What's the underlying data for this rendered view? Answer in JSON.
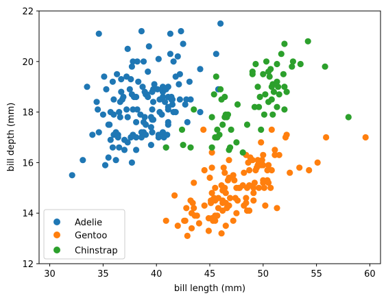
{
  "chart_data": {
    "type": "scatter",
    "xlabel": "bill length (mm)",
    "ylabel": "bill depth (mm)",
    "xlim": [
      29,
      61
    ],
    "ylim": [
      12,
      22
    ],
    "xticks": [
      30,
      35,
      40,
      45,
      50,
      55,
      60
    ],
    "yticks": [
      12,
      14,
      16,
      18,
      20,
      22
    ],
    "grid": false,
    "legend": "lower-left",
    "series": [
      {
        "name": "Adelie",
        "color": "#1f77b4",
        "points": [
          [
            32.1,
            15.5
          ],
          [
            33.1,
            16.1
          ],
          [
            33.5,
            19.0
          ],
          [
            34.0,
            17.1
          ],
          [
            34.4,
            18.4
          ],
          [
            34.5,
            18.1
          ],
          [
            34.6,
            21.1
          ],
          [
            34.6,
            17.2
          ],
          [
            35.0,
            17.9
          ],
          [
            35.1,
            19.4
          ],
          [
            35.2,
            15.9
          ],
          [
            35.3,
            18.9
          ],
          [
            35.5,
            16.2
          ],
          [
            35.5,
            17.5
          ],
          [
            35.6,
            17.5
          ],
          [
            35.7,
            16.9
          ],
          [
            35.7,
            18.0
          ],
          [
            35.9,
            19.2
          ],
          [
            35.9,
            16.6
          ],
          [
            36.0,
            18.5
          ],
          [
            36.0,
            17.1
          ],
          [
            36.0,
            17.9
          ],
          [
            36.2,
            16.1
          ],
          [
            36.2,
            17.2
          ],
          [
            36.3,
            19.5
          ],
          [
            36.4,
            17.0
          ],
          [
            36.4,
            17.1
          ],
          [
            36.5,
            16.6
          ],
          [
            36.5,
            18.0
          ],
          [
            36.6,
            17.8
          ],
          [
            36.6,
            18.4
          ],
          [
            36.7,
            18.8
          ],
          [
            36.7,
            19.3
          ],
          [
            36.8,
            18.5
          ],
          [
            36.9,
            18.6
          ],
          [
            37.0,
            16.9
          ],
          [
            37.0,
            16.5
          ],
          [
            37.2,
            18.1
          ],
          [
            37.2,
            19.4
          ],
          [
            37.3,
            20.5
          ],
          [
            37.3,
            16.8
          ],
          [
            37.3,
            17.8
          ],
          [
            37.5,
            18.9
          ],
          [
            37.6,
            19.3
          ],
          [
            37.6,
            17.0
          ],
          [
            37.7,
            18.7
          ],
          [
            37.7,
            19.8
          ],
          [
            37.7,
            16.0
          ],
          [
            37.8,
            17.1
          ],
          [
            37.8,
            18.1
          ],
          [
            37.8,
            20.0
          ],
          [
            37.9,
            18.6
          ],
          [
            38.1,
            17.0
          ],
          [
            38.1,
            16.5
          ],
          [
            38.1,
            18.6
          ],
          [
            38.1,
            17.6
          ],
          [
            38.2,
            18.1
          ],
          [
            38.2,
            20.0
          ],
          [
            38.3,
            19.2
          ],
          [
            38.5,
            17.9
          ],
          [
            38.6,
            21.2
          ],
          [
            38.6,
            17.2
          ],
          [
            38.6,
            17.0
          ],
          [
            38.7,
            19.0
          ],
          [
            38.8,
            17.2
          ],
          [
            38.8,
            20.0
          ],
          [
            38.8,
            17.6
          ],
          [
            38.9,
            18.8
          ],
          [
            38.9,
            17.8
          ],
          [
            39.0,
            17.1
          ],
          [
            39.0,
            17.5
          ],
          [
            39.0,
            18.7
          ],
          [
            39.1,
            18.7
          ],
          [
            39.2,
            19.6
          ],
          [
            39.2,
            18.6
          ],
          [
            39.3,
            20.6
          ],
          [
            39.5,
            17.4
          ],
          [
            39.5,
            16.7
          ],
          [
            39.5,
            17.8
          ],
          [
            39.6,
            17.7
          ],
          [
            39.6,
            18.8
          ],
          [
            39.6,
            17.2
          ],
          [
            39.6,
            18.1
          ],
          [
            39.7,
            17.7
          ],
          [
            39.7,
            18.4
          ],
          [
            39.7,
            18.9
          ],
          [
            39.8,
            19.1
          ],
          [
            40.1,
            18.9
          ],
          [
            40.2,
            17.0
          ],
          [
            40.2,
            20.1
          ],
          [
            40.2,
            17.1
          ],
          [
            40.3,
            18.0
          ],
          [
            40.3,
            18.5
          ],
          [
            40.5,
            17.9
          ],
          [
            40.5,
            18.9
          ],
          [
            40.6,
            18.6
          ],
          [
            40.6,
            18.8
          ],
          [
            40.6,
            19.0
          ],
          [
            40.6,
            17.2
          ],
          [
            40.7,
            17.0
          ],
          [
            40.8,
            18.4
          ],
          [
            40.8,
            18.9
          ],
          [
            40.9,
            18.9
          ],
          [
            40.9,
            16.6
          ],
          [
            41.0,
            17.1
          ],
          [
            41.1,
            17.6
          ],
          [
            41.1,
            19.0
          ],
          [
            41.1,
            18.6
          ],
          [
            41.1,
            17.5
          ],
          [
            41.1,
            18.2
          ],
          [
            41.1,
            18.1
          ],
          [
            41.3,
            20.3
          ],
          [
            41.3,
            21.1
          ],
          [
            41.4,
            18.6
          ],
          [
            41.4,
            18.5
          ],
          [
            41.5,
            18.3
          ],
          [
            41.5,
            18.5
          ],
          [
            41.6,
            18.0
          ],
          [
            41.6,
            20.0
          ],
          [
            41.8,
            19.4
          ],
          [
            41.8,
            18.0
          ],
          [
            42.0,
            20.2
          ],
          [
            42.1,
            19.1
          ],
          [
            42.2,
            18.5
          ],
          [
            42.2,
            19.5
          ],
          [
            42.3,
            21.2
          ],
          [
            42.5,
            20.7
          ],
          [
            42.7,
            18.3
          ],
          [
            42.8,
            18.5
          ],
          [
            42.9,
            17.6
          ],
          [
            43.1,
            19.2
          ],
          [
            43.2,
            18.5
          ],
          [
            44.1,
            19.7
          ],
          [
            44.1,
            18.0
          ],
          [
            45.6,
            20.3
          ],
          [
            45.8,
            18.9
          ],
          [
            46.0,
            21.5
          ]
        ]
      },
      {
        "name": "Gentoo",
        "color": "#ff7f0e",
        "points": [
          [
            40.9,
            13.7
          ],
          [
            41.7,
            14.7
          ],
          [
            42.0,
            13.5
          ],
          [
            42.6,
            13.7
          ],
          [
            42.7,
            13.7
          ],
          [
            42.8,
            14.2
          ],
          [
            42.9,
            13.1
          ],
          [
            43.2,
            14.5
          ],
          [
            43.3,
            13.4
          ],
          [
            43.3,
            14.0
          ],
          [
            43.4,
            14.4
          ],
          [
            43.5,
            14.2
          ],
          [
            43.5,
            15.2
          ],
          [
            43.6,
            13.9
          ],
          [
            43.8,
            13.9
          ],
          [
            44.0,
            13.6
          ],
          [
            44.4,
            17.3
          ],
          [
            44.5,
            14.3
          ],
          [
            44.5,
            15.7
          ],
          [
            44.9,
            13.3
          ],
          [
            44.9,
            13.8
          ],
          [
            45.0,
            15.4
          ],
          [
            45.1,
            14.5
          ],
          [
            45.1,
            14.4
          ],
          [
            45.2,
            13.8
          ],
          [
            45.2,
            14.8
          ],
          [
            45.2,
            15.8
          ],
          [
            45.2,
            16.4
          ],
          [
            45.3,
            13.7
          ],
          [
            45.3,
            13.8
          ],
          [
            45.4,
            14.6
          ],
          [
            45.5,
            13.7
          ],
          [
            45.5,
            13.9
          ],
          [
            45.5,
            14.5
          ],
          [
            45.5,
            15.0
          ],
          [
            45.7,
            13.9
          ],
          [
            45.8,
            14.2
          ],
          [
            45.8,
            14.6
          ],
          [
            46.1,
            13.2
          ],
          [
            46.1,
            15.1
          ],
          [
            46.2,
            14.1
          ],
          [
            46.2,
            14.4
          ],
          [
            46.2,
            14.5
          ],
          [
            46.2,
            14.9
          ],
          [
            46.3,
            15.8
          ],
          [
            46.4,
            15.0
          ],
          [
            46.4,
            15.6
          ],
          [
            46.5,
            13.5
          ],
          [
            46.5,
            14.4
          ],
          [
            46.5,
            14.8
          ],
          [
            46.6,
            14.2
          ],
          [
            46.7,
            15.3
          ],
          [
            46.8,
            14.3
          ],
          [
            46.8,
            15.4
          ],
          [
            46.8,
            16.1
          ],
          [
            46.9,
            14.6
          ],
          [
            47.2,
            13.7
          ],
          [
            47.2,
            15.5
          ],
          [
            47.3,
            15.3
          ],
          [
            47.4,
            14.6
          ],
          [
            47.5,
            14.0
          ],
          [
            47.5,
            15.0
          ],
          [
            47.6,
            14.5
          ],
          [
            47.7,
            15.0
          ],
          [
            47.8,
            15.0
          ],
          [
            48.1,
            15.1
          ],
          [
            48.2,
            14.3
          ],
          [
            48.2,
            15.6
          ],
          [
            48.4,
            14.4
          ],
          [
            48.4,
            14.6
          ],
          [
            48.4,
            16.3
          ],
          [
            48.5,
            14.1
          ],
          [
            48.5,
            15.0
          ],
          [
            48.6,
            16.0
          ],
          [
            48.7,
            14.1
          ],
          [
            48.7,
            15.1
          ],
          [
            48.7,
            15.7
          ],
          [
            48.8,
            16.2
          ],
          [
            49.0,
            16.1
          ],
          [
            49.1,
            14.5
          ],
          [
            49.1,
            14.8
          ],
          [
            49.1,
            15.0
          ],
          [
            49.2,
            15.2
          ],
          [
            49.3,
            15.7
          ],
          [
            49.4,
            15.8
          ],
          [
            49.5,
            15.9
          ],
          [
            49.5,
            16.1
          ],
          [
            49.6,
            15.0
          ],
          [
            49.6,
            16.0
          ],
          [
            49.8,
            15.9
          ],
          [
            49.8,
            16.8
          ],
          [
            49.9,
            16.1
          ],
          [
            50.0,
            15.2
          ],
          [
            50.0,
            15.3
          ],
          [
            50.0,
            15.9
          ],
          [
            50.0,
            16.3
          ],
          [
            50.1,
            15.0
          ],
          [
            50.2,
            14.3
          ],
          [
            50.4,
            15.3
          ],
          [
            50.4,
            15.7
          ],
          [
            50.5,
            15.2
          ],
          [
            50.5,
            15.9
          ],
          [
            50.7,
            15.0
          ],
          [
            50.8,
            15.7
          ],
          [
            50.8,
            17.3
          ],
          [
            51.1,
            16.3
          ],
          [
            51.1,
            16.5
          ],
          [
            51.3,
            14.2
          ],
          [
            51.5,
            16.3
          ],
          [
            52.1,
            17.0
          ],
          [
            52.2,
            17.1
          ],
          [
            52.5,
            15.6
          ],
          [
            53.4,
            15.8
          ],
          [
            54.3,
            15.7
          ],
          [
            55.1,
            16.0
          ],
          [
            55.9,
            17.0
          ],
          [
            59.6,
            17.0
          ]
        ]
      },
      {
        "name": "Chinstrap",
        "color": "#2ca02c",
        "points": [
          [
            40.9,
            16.6
          ],
          [
            42.4,
            17.3
          ],
          [
            42.5,
            16.7
          ],
          [
            43.2,
            16.6
          ],
          [
            43.5,
            18.1
          ],
          [
            45.2,
            16.6
          ],
          [
            45.2,
            17.8
          ],
          [
            45.4,
            18.7
          ],
          [
            45.5,
            17.0
          ],
          [
            45.6,
            19.4
          ],
          [
            45.7,
            17.0
          ],
          [
            45.7,
            17.3
          ],
          [
            45.9,
            17.1
          ],
          [
            46.0,
            18.9
          ],
          [
            46.1,
            18.5
          ],
          [
            46.2,
            17.5
          ],
          [
            46.4,
            17.8
          ],
          [
            46.4,
            18.6
          ],
          [
            46.5,
            17.9
          ],
          [
            46.6,
            17.8
          ],
          [
            46.7,
            17.9
          ],
          [
            46.8,
            16.5
          ],
          [
            46.9,
            16.6
          ],
          [
            47.0,
            17.3
          ],
          [
            47.5,
            16.8
          ],
          [
            47.6,
            18.3
          ],
          [
            48.1,
            16.4
          ],
          [
            48.5,
            17.5
          ],
          [
            49.0,
            19.5
          ],
          [
            49.0,
            19.6
          ],
          [
            49.2,
            18.2
          ],
          [
            49.3,
            19.9
          ],
          [
            49.5,
            19.0
          ],
          [
            49.6,
            18.2
          ],
          [
            49.7,
            18.6
          ],
          [
            49.8,
            17.3
          ],
          [
            50.0,
            19.5
          ],
          [
            50.1,
            17.9
          ],
          [
            50.2,
            18.7
          ],
          [
            50.3,
            20.0
          ],
          [
            50.5,
            18.4
          ],
          [
            50.5,
            19.6
          ],
          [
            50.6,
            19.4
          ],
          [
            50.7,
            19.7
          ],
          [
            50.8,
            18.5
          ],
          [
            50.8,
            19.0
          ],
          [
            50.9,
            17.9
          ],
          [
            50.9,
            19.1
          ],
          [
            51.0,
            18.8
          ],
          [
            51.3,
            18.2
          ],
          [
            51.3,
            19.2
          ],
          [
            51.3,
            19.9
          ],
          [
            51.4,
            19.0
          ],
          [
            51.5,
            18.7
          ],
          [
            51.7,
            20.3
          ],
          [
            51.9,
            19.5
          ],
          [
            52.0,
            18.1
          ],
          [
            52.0,
            19.0
          ],
          [
            52.0,
            20.7
          ],
          [
            52.2,
            18.8
          ],
          [
            52.7,
            19.8
          ],
          [
            52.8,
            20.0
          ],
          [
            53.5,
            19.9
          ],
          [
            54.2,
            20.8
          ],
          [
            55.8,
            19.8
          ],
          [
            58.0,
            17.8
          ]
        ]
      }
    ]
  }
}
